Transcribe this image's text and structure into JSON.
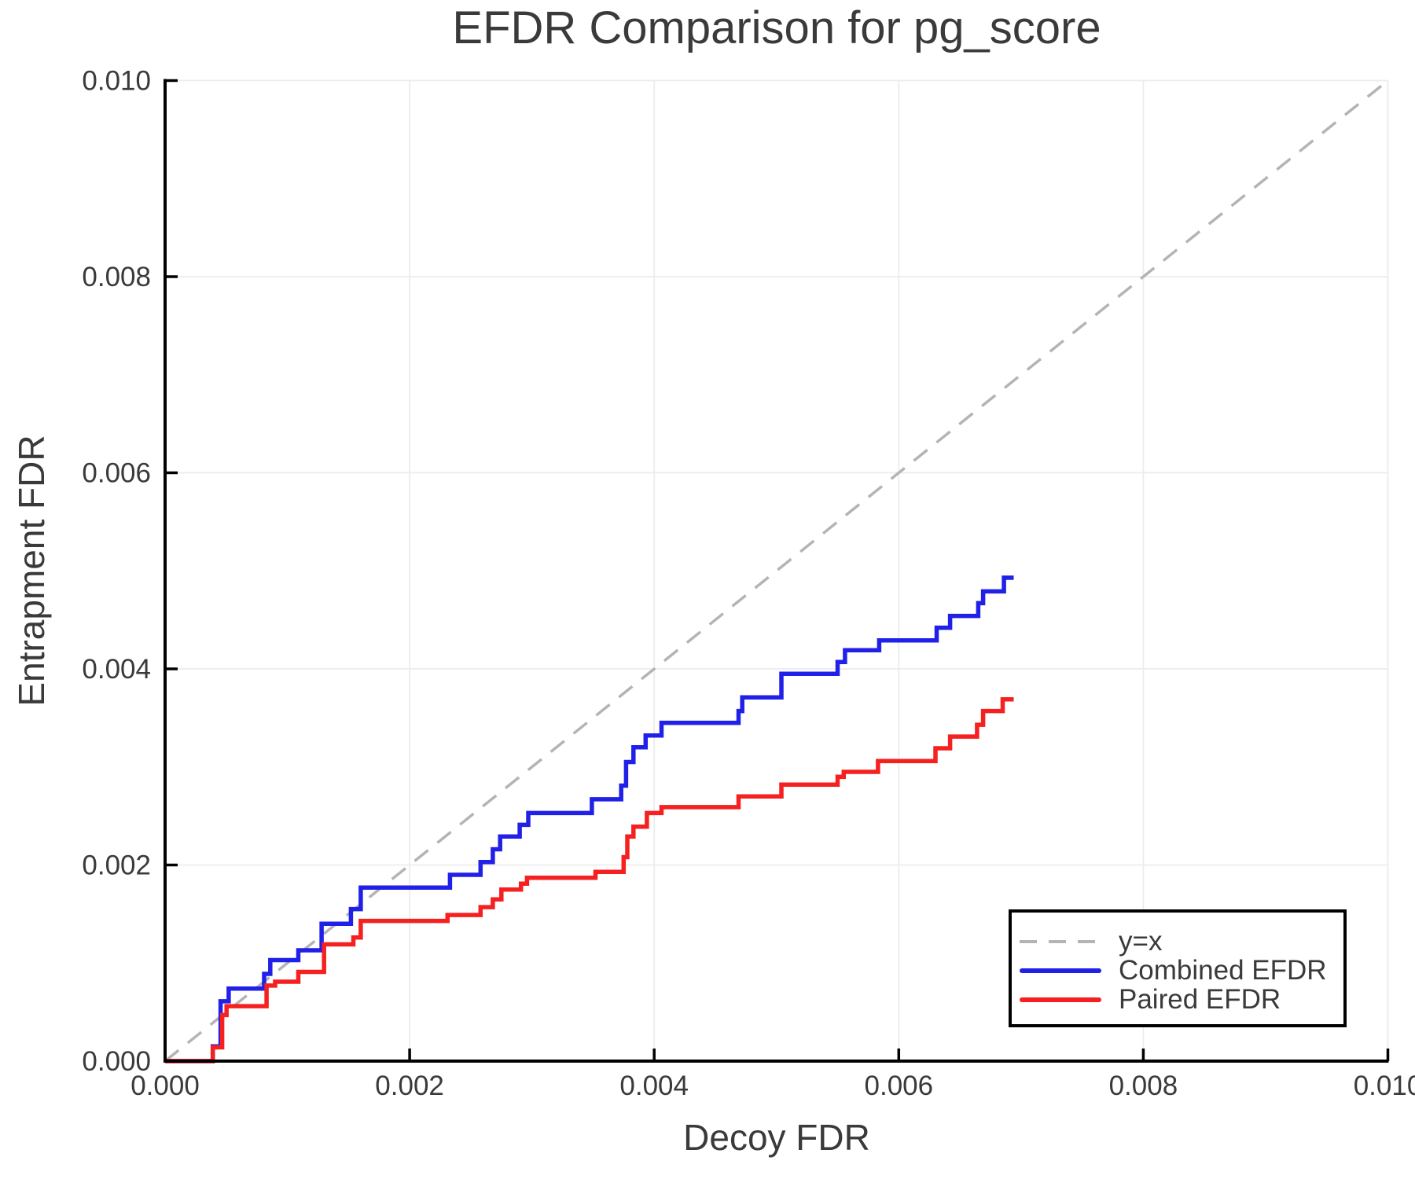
{
  "chart_data": {
    "type": "line",
    "title": "EFDR Comparison for pg_score",
    "xlabel": "Decoy FDR",
    "ylabel": "Entrapment FDR",
    "xlim": [
      0.0,
      0.01
    ],
    "ylim": [
      0.0,
      0.01
    ],
    "x_ticks": [
      0.0,
      0.002,
      0.004,
      0.006,
      0.008,
      0.01
    ],
    "y_ticks": [
      0.0,
      0.002,
      0.004,
      0.006,
      0.008,
      0.01
    ],
    "tick_decimals": 3,
    "grid": true,
    "legend_position": "lower right",
    "colors": {
      "background": "#ffffff",
      "grid": "#ececec",
      "axis": "#000000",
      "text": "#3a3a3a",
      "identity": "#b4b4b4",
      "combined": "#2020e8",
      "paired": "#f52020"
    },
    "legend": {
      "entries": [
        {
          "label": "y=x",
          "key": "identity"
        },
        {
          "label": "Combined EFDR",
          "key": "combined"
        },
        {
          "label": "Paired EFDR",
          "key": "paired"
        }
      ]
    },
    "identity_line": {
      "label": "y=x",
      "style": "dashed",
      "from": [
        0.0,
        0.0
      ],
      "to": [
        0.01,
        0.01
      ]
    },
    "series": [
      {
        "name": "Combined EFDR",
        "key": "combined",
        "style": "step",
        "end_x": 0.00694,
        "points": [
          [
            0.0,
            0.0
          ],
          [
            0.00039,
            0.00015
          ],
          [
            0.000454,
            0.00061
          ],
          [
            0.00052,
            0.00074
          ],
          [
            0.00081,
            0.00089
          ],
          [
            0.00086,
            0.00103
          ],
          [
            0.00109,
            0.00113
          ],
          [
            0.00128,
            0.0014
          ],
          [
            0.00152,
            0.00155
          ],
          [
            0.0016,
            0.00177
          ],
          [
            0.00233,
            0.0019
          ],
          [
            0.00258,
            0.00203
          ],
          [
            0.00268,
            0.00216
          ],
          [
            0.00274,
            0.00229
          ],
          [
            0.0029,
            0.00241
          ],
          [
            0.00297,
            0.00253
          ],
          [
            0.00349,
            0.00267
          ],
          [
            0.00373,
            0.00281
          ],
          [
            0.00377,
            0.00305
          ],
          [
            0.00383,
            0.0032
          ],
          [
            0.00393,
            0.00332
          ],
          [
            0.00406,
            0.00345
          ],
          [
            0.00469,
            0.00357
          ],
          [
            0.00472,
            0.00371
          ],
          [
            0.00504,
            0.00395
          ],
          [
            0.0055,
            0.00407
          ],
          [
            0.00556,
            0.00419
          ],
          [
            0.00584,
            0.00429
          ],
          [
            0.00631,
            0.00442
          ],
          [
            0.00642,
            0.00454
          ],
          [
            0.00665,
            0.00467
          ],
          [
            0.00669,
            0.00479
          ],
          [
            0.00686,
            0.00493
          ]
        ]
      },
      {
        "name": "Paired EFDR",
        "key": "paired",
        "style": "step",
        "end_x": 0.00694,
        "points": [
          [
            0.0,
            0.0
          ],
          [
            0.00039,
            0.00014
          ],
          [
            0.000467,
            0.00047
          ],
          [
            0.000503,
            0.00056
          ],
          [
            0.00083,
            0.00077
          ],
          [
            0.0009,
            0.00081
          ],
          [
            0.00109,
            0.00091
          ],
          [
            0.0013,
            0.00119
          ],
          [
            0.00154,
            0.00126
          ],
          [
            0.0016,
            0.00143
          ],
          [
            0.00231,
            0.00149
          ],
          [
            0.00258,
            0.00157
          ],
          [
            0.00268,
            0.00165
          ],
          [
            0.00275,
            0.00175
          ],
          [
            0.00291,
            0.00181
          ],
          [
            0.00296,
            0.00187
          ],
          [
            0.00352,
            0.00193
          ],
          [
            0.00375,
            0.00208
          ],
          [
            0.00378,
            0.00229
          ],
          [
            0.00383,
            0.00239
          ],
          [
            0.00394,
            0.00253
          ],
          [
            0.00406,
            0.00259
          ],
          [
            0.00469,
            0.0027
          ],
          [
            0.00504,
            0.00282
          ],
          [
            0.0055,
            0.0029
          ],
          [
            0.00555,
            0.00295
          ],
          [
            0.00583,
            0.00306
          ],
          [
            0.0063,
            0.00319
          ],
          [
            0.00642,
            0.00331
          ],
          [
            0.00664,
            0.00343
          ],
          [
            0.00669,
            0.00357
          ],
          [
            0.00685,
            0.00369
          ]
        ]
      }
    ]
  }
}
